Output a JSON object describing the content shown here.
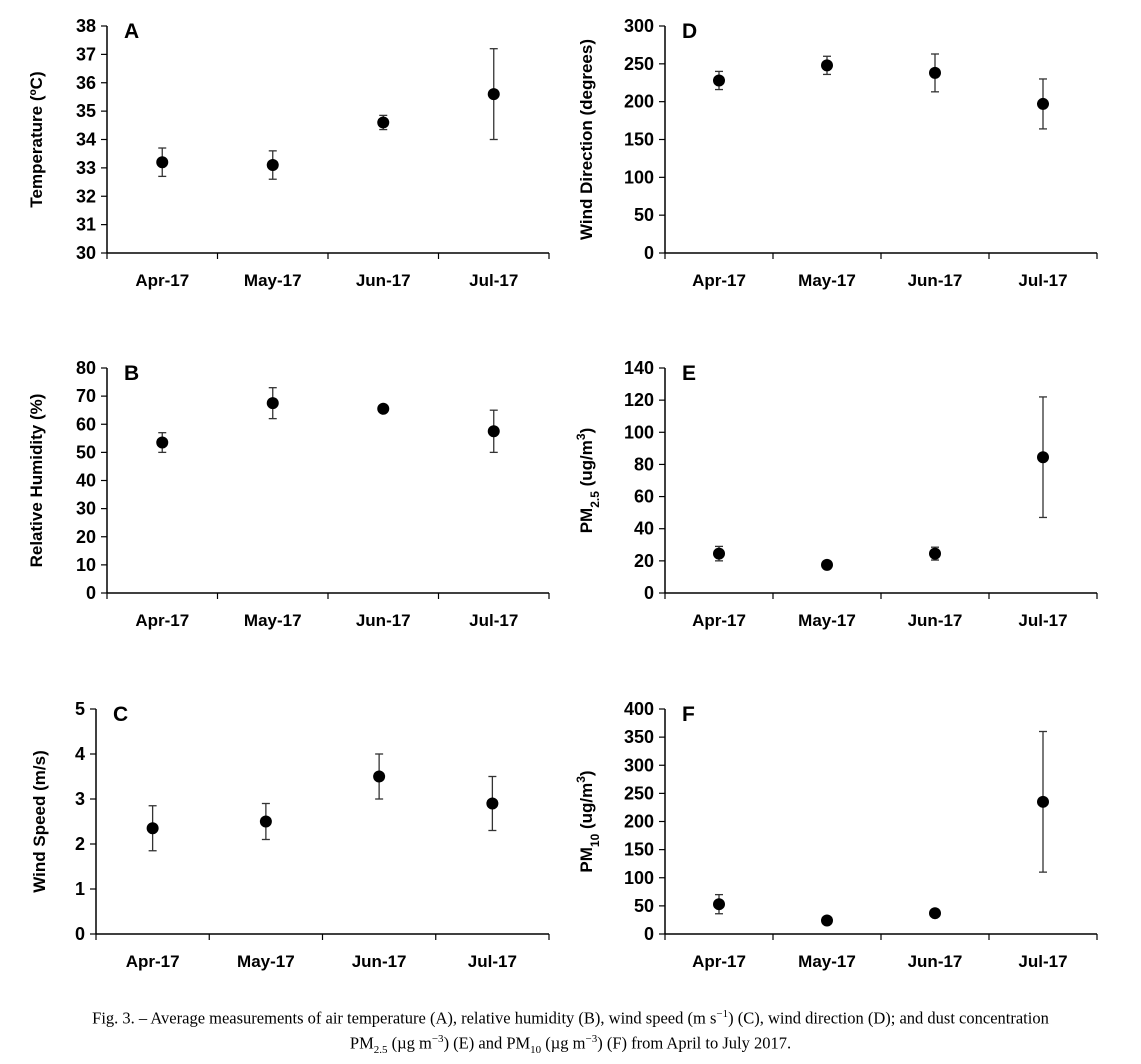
{
  "figure": {
    "caption_line1": "Fig. 3. – Average measurements of air temperature (A), relative humidity (B), wind speed (m s",
    "caption_line1_sup": "−1",
    "caption_line1_end": ") (C), wind direction (D); and dust concentration",
    "caption_pm25_prefix": "PM",
    "caption_pm25_sub": "2.5",
    "caption_pm25_unit": " (µg m",
    "caption_pm25_sup": "−3",
    "caption_pm25_end": ") (E) and PM",
    "caption_pm10_sub": "10",
    "caption_pm10_unit": " (µg m",
    "caption_pm10_sup": "−3",
    "caption_line2_end": ") (F) from April to July 2017."
  },
  "chart_data": [
    {
      "panel": "A",
      "type": "scatter",
      "categories": [
        "Apr-17",
        "May-17",
        "Jun-17",
        "Jul-17"
      ],
      "values": [
        33.2,
        33.1,
        34.6,
        35.6
      ],
      "error": [
        0.5,
        0.5,
        0.25,
        1.6
      ],
      "ylabel": "Temperature (ºC)",
      "ylabel_parts": {
        "main": "Temperature (ºC)",
        "sub": "",
        "tail": ""
      },
      "ylim": [
        30,
        38
      ],
      "yticks": [
        30,
        31,
        32,
        33,
        34,
        35,
        36,
        37,
        38
      ]
    },
    {
      "panel": "B",
      "type": "scatter",
      "categories": [
        "Apr-17",
        "May-17",
        "Jun-17",
        "Jul-17"
      ],
      "values": [
        53.5,
        67.5,
        65.5,
        57.5
      ],
      "error": [
        3.5,
        5.5,
        0,
        7.5
      ],
      "ylabel": "Relative Humidity (%)",
      "ylabel_parts": {
        "main": "Relative Humidity (%)",
        "sub": "",
        "tail": ""
      },
      "ylim": [
        0,
        80
      ],
      "yticks": [
        0,
        10,
        20,
        30,
        40,
        50,
        60,
        70,
        80
      ]
    },
    {
      "panel": "C",
      "type": "scatter",
      "categories": [
        "Apr-17",
        "May-17",
        "Jun-17",
        "Jul-17"
      ],
      "values": [
        2.35,
        2.5,
        3.5,
        2.9
      ],
      "error": [
        0.5,
        0.4,
        0.5,
        0.6
      ],
      "ylabel": "Wind Speed (m/s)",
      "ylabel_parts": {
        "main": "Wind Speed (m/s)",
        "sub": "",
        "tail": ""
      },
      "ylim": [
        0,
        5
      ],
      "yticks": [
        0,
        1,
        2,
        3,
        4,
        5
      ]
    },
    {
      "panel": "D",
      "type": "scatter",
      "categories": [
        "Apr-17",
        "May-17",
        "Jun-17",
        "Jul-17"
      ],
      "values": [
        228,
        248,
        238,
        197
      ],
      "error": [
        12,
        12,
        25,
        33
      ],
      "ylabel": "Wind Direction (degrees)",
      "ylabel_parts": {
        "main": "Wind Direction (degrees)",
        "sub": "",
        "tail": ""
      },
      "ylim": [
        0,
        300
      ],
      "yticks": [
        0,
        50,
        100,
        150,
        200,
        250,
        300
      ]
    },
    {
      "panel": "E",
      "type": "scatter",
      "categories": [
        "Apr-17",
        "May-17",
        "Jun-17",
        "Jul-17"
      ],
      "values": [
        24.5,
        17.5,
        24.5,
        84.5
      ],
      "error": [
        4.5,
        0,
        4,
        37.5
      ],
      "ylabel": "PM2.5 (ug/m3)",
      "ylabel_parts": {
        "main": "PM",
        "sub": "2.5",
        "tail": " (ug/m",
        "sup": "3",
        "close": ")"
      },
      "ylim": [
        0,
        140
      ],
      "yticks": [
        0,
        20,
        40,
        60,
        80,
        100,
        120,
        140
      ]
    },
    {
      "panel": "F",
      "type": "scatter",
      "categories": [
        "Apr-17",
        "May-17",
        "Jun-17",
        "Jul-17"
      ],
      "values": [
        53,
        24,
        37,
        235
      ],
      "error": [
        17,
        0,
        0,
        125
      ],
      "ylabel": "PM10 (ug/m3)",
      "ylabel_parts": {
        "main": "PM",
        "sub": "10",
        "tail": " (ug/m",
        "sup": "3",
        "close": ")"
      },
      "ylim": [
        0,
        400
      ],
      "yticks": [
        0,
        50,
        100,
        150,
        200,
        250,
        300,
        350,
        400
      ]
    }
  ]
}
